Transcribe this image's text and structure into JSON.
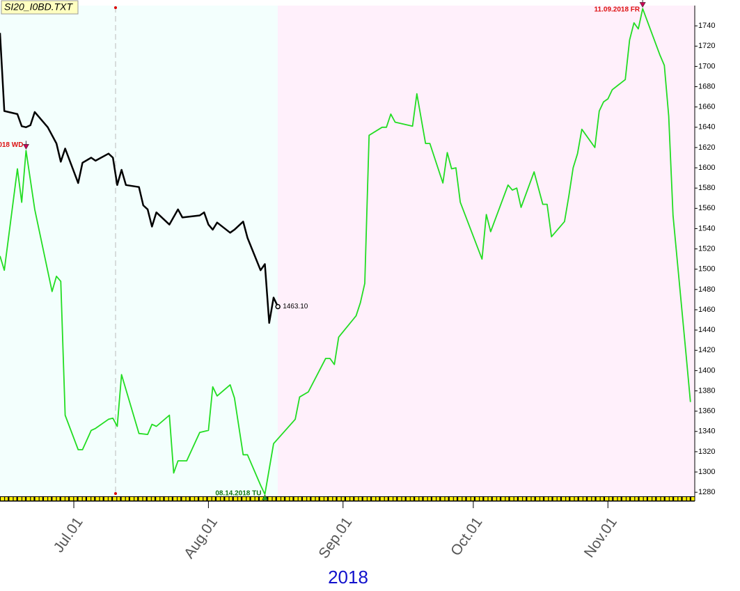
{
  "chart_data": {
    "type": "line",
    "title": "SI20_I0BD.TXT",
    "xlabel": "2018",
    "xlim": [
      "2018-06-14",
      "2018-11-21"
    ],
    "xticks": [
      {
        "value": "2018-07-01",
        "label": "Jul.01"
      },
      {
        "value": "2018-08-01",
        "label": "Aug.01"
      },
      {
        "value": "2018-09-01",
        "label": "Sep.01"
      },
      {
        "value": "2018-10-01",
        "label": "Oct.01"
      },
      {
        "value": "2018-11-01",
        "label": "Nov.01"
      }
    ],
    "ylim": [
      1276,
      1760
    ],
    "yticks": [
      1280,
      1300,
      1320,
      1340,
      1360,
      1380,
      1400,
      1420,
      1440,
      1460,
      1480,
      1500,
      1520,
      1540,
      1560,
      1580,
      1600,
      1620,
      1640,
      1660,
      1680,
      1700,
      1720,
      1740
    ],
    "y_axis_side": "right",
    "series": [
      {
        "color": "#22dd22",
        "x": [
          "2018-06-14",
          "2018-06-15",
          "2018-06-18",
          "2018-06-19",
          "2018-06-20",
          "2018-06-22",
          "2018-06-26",
          "2018-06-27",
          "2018-06-28",
          "2018-06-29",
          "2018-07-02",
          "2018-07-03",
          "2018-07-05",
          "2018-07-06",
          "2018-07-09",
          "2018-07-10",
          "2018-07-11",
          "2018-07-12",
          "2018-07-16",
          "2018-07-18",
          "2018-07-19",
          "2018-07-20",
          "2018-07-23",
          "2018-07-24",
          "2018-07-25",
          "2018-07-27",
          "2018-07-30",
          "2018-08-01",
          "2018-08-02",
          "2018-08-03",
          "2018-08-06",
          "2018-08-07",
          "2018-08-09",
          "2018-08-10",
          "2018-08-13",
          "2018-08-14",
          "2018-08-16",
          "2018-08-21",
          "2018-08-22",
          "2018-08-24",
          "2018-08-28",
          "2018-08-29",
          "2018-08-30",
          "2018-08-31",
          "2018-09-04",
          "2018-09-05",
          "2018-09-06",
          "2018-09-07",
          "2018-09-10",
          "2018-09-11",
          "2018-09-12",
          "2018-09-13",
          "2018-09-17",
          "2018-09-18",
          "2018-09-20",
          "2018-09-21",
          "2018-09-24",
          "2018-09-25",
          "2018-09-26",
          "2018-09-27",
          "2018-09-28",
          "2018-10-03",
          "2018-10-04",
          "2018-10-05",
          "2018-10-09",
          "2018-10-10",
          "2018-10-11",
          "2018-10-12",
          "2018-10-15",
          "2018-10-17",
          "2018-10-18",
          "2018-10-19",
          "2018-10-22",
          "2018-10-23",
          "2018-10-24",
          "2018-10-25",
          "2018-10-26",
          "2018-10-29",
          "2018-10-30",
          "2018-10-31",
          "2018-11-01",
          "2018-11-02",
          "2018-11-05",
          "2018-11-06",
          "2018-11-07",
          "2018-11-08",
          "2018-11-09",
          "2018-11-13",
          "2018-11-14",
          "2018-11-15",
          "2018-11-16",
          "2018-11-19",
          "2018-11-20"
        ],
        "values": [
          1513,
          1499,
          1599,
          1566,
          1617,
          1559,
          1478,
          1493,
          1488,
          1356,
          1322,
          1322,
          1341,
          1343,
          1352,
          1353,
          1345,
          1396,
          1338,
          1337,
          1347,
          1345,
          1356,
          1299,
          1311,
          1311,
          1339,
          1341,
          1384,
          1375,
          1386,
          1373,
          1317,
          1317,
          1287,
          1278,
          1328,
          1352,
          1374,
          1379,
          1412,
          1412,
          1406,
          1433,
          1454,
          1467,
          1486,
          1632,
          1640,
          1640,
          1653,
          1645,
          1641,
          1673,
          1624,
          1624,
          1585,
          1615,
          1599,
          1600,
          1566,
          1510,
          1554,
          1537,
          1583,
          1578,
          1580,
          1561,
          1596,
          1564,
          1564,
          1532,
          1547,
          1572,
          1600,
          1614,
          1638,
          1620,
          1656,
          1665,
          1668,
          1677,
          1687,
          1726,
          1743,
          1737,
          1757,
          1711,
          1701,
          1651,
          1553,
          1416,
          1369
        ]
      },
      {
        "color": "#000000",
        "x": [
          "2018-06-14",
          "2018-06-15",
          "2018-06-18",
          "2018-06-19",
          "2018-06-20",
          "2018-06-21",
          "2018-06-22",
          "2018-06-25",
          "2018-06-27",
          "2018-06-28",
          "2018-06-29",
          "2018-07-02",
          "2018-07-03",
          "2018-07-05",
          "2018-07-06",
          "2018-07-09",
          "2018-07-10",
          "2018-07-11",
          "2018-07-12",
          "2018-07-13",
          "2018-07-16",
          "2018-07-17",
          "2018-07-18",
          "2018-07-19",
          "2018-07-20",
          "2018-07-23",
          "2018-07-25",
          "2018-07-26",
          "2018-07-30",
          "2018-07-31",
          "2018-08-01",
          "2018-08-02",
          "2018-08-03",
          "2018-08-06",
          "2018-08-07",
          "2018-08-09",
          "2018-08-10",
          "2018-08-13",
          "2018-08-14",
          "2018-08-15",
          "2018-08-16",
          "2018-08-17"
        ],
        "values": [
          1733,
          1656,
          1653,
          1641,
          1640,
          1642,
          1655,
          1640,
          1624,
          1606,
          1619,
          1585,
          1605,
          1610,
          1607,
          1614,
          1610,
          1583,
          1598,
          1583,
          1581,
          1563,
          1559,
          1542,
          1556,
          1544,
          1559,
          1551,
          1553,
          1556,
          1544,
          1539,
          1546,
          1536,
          1539,
          1547,
          1531,
          1499,
          1505,
          1447,
          1472,
          1463.1
        ],
        "value_labels": [
          null,
          null,
          null,
          null,
          null,
          null,
          null,
          null,
          null,
          null,
          null,
          null,
          null,
          null,
          null,
          null,
          null,
          null,
          null,
          null,
          null,
          null,
          null,
          null,
          null,
          null,
          null,
          null,
          null,
          null,
          null,
          null,
          null,
          null,
          null,
          null,
          null,
          null,
          null,
          null,
          null,
          "1463.10"
        ]
      }
    ],
    "annotations": [
      {
        "text": "018 WD",
        "x": "2018-06-20",
        "position": "above",
        "color": "#dd1111"
      },
      {
        "text": "08.14.2018 TU",
        "x": "2018-08-14",
        "position": "below",
        "color": "#117711"
      },
      {
        "text": "11.09.2018 FR",
        "x": "2018-11-09",
        "position": "above",
        "color": "#dd1111"
      }
    ]
  }
}
